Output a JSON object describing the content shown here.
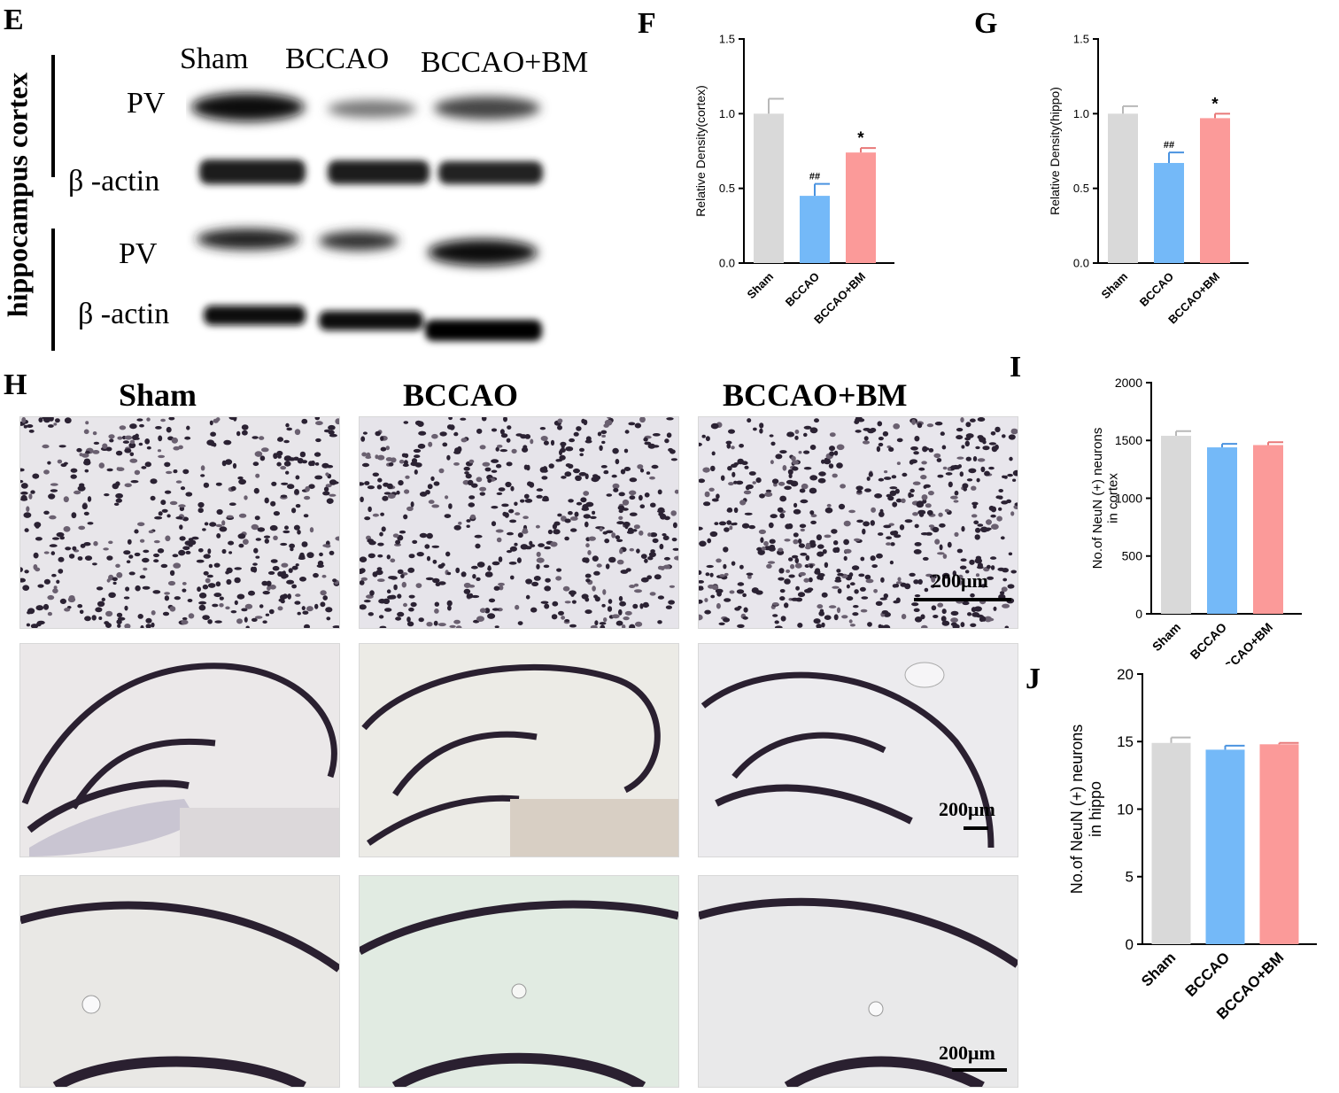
{
  "panels": {
    "E": "E",
    "F": "F",
    "G": "G",
    "H": "H",
    "I": "I",
    "J": "J"
  },
  "western_blot": {
    "lanes": [
      "Sham",
      "BCCAO",
      "BCCAO+BM"
    ],
    "region_labels": [
      "cortex",
      "hippocampus"
    ],
    "rows": [
      "PV",
      "β -actin",
      "PV",
      "β -actin"
    ]
  },
  "histology": {
    "columns": [
      "Sham",
      "BCCAO",
      "BCCAO+BM"
    ],
    "scale_bars": [
      "200μm",
      "200μm",
      "200μm"
    ]
  },
  "colors": {
    "sham": "#d9d9d9",
    "bccao": "#74b9f8",
    "bccao_bm": "#fb9a99"
  },
  "chart_data": [
    {
      "panel": "F",
      "type": "bar",
      "categories": [
        "Sham",
        "BCCAO",
        "BCCAO+BM"
      ],
      "values": [
        1.0,
        0.45,
        0.74
      ],
      "errors": [
        0.1,
        0.08,
        0.03
      ],
      "annotations": [
        "",
        "##",
        "*"
      ],
      "ylabel": "Relative Density(cortex)",
      "ylim": [
        0,
        1.5
      ],
      "yticks": [
        "0.0",
        "0.5",
        "1.0",
        "1.5"
      ]
    },
    {
      "panel": "G",
      "type": "bar",
      "categories": [
        "Sham",
        "BCCAO",
        "BCCAO+BM"
      ],
      "values": [
        1.0,
        0.67,
        0.97
      ],
      "errors": [
        0.05,
        0.07,
        0.03
      ],
      "annotations": [
        "",
        "##",
        "*"
      ],
      "ylabel": "Relative Density(hippo)",
      "ylim": [
        0,
        1.5
      ],
      "yticks": [
        "0.0",
        "0.5",
        "1.0",
        "1.5"
      ]
    },
    {
      "panel": "I",
      "type": "bar",
      "categories": [
        "Sham",
        "BCCAO",
        "BCCAO+BM"
      ],
      "values": [
        1540,
        1440,
        1460
      ],
      "errors": [
        40,
        30,
        25
      ],
      "annotations": [
        "",
        "",
        ""
      ],
      "ylabel": "No.of NeuN (+) neurons in cortex",
      "ylim": [
        0,
        2000
      ],
      "yticks": [
        "0",
        "500",
        "1000",
        "1500",
        "2000"
      ]
    },
    {
      "panel": "J",
      "type": "bar",
      "categories": [
        "Sham",
        "BCCAO",
        "BCCAO+BM"
      ],
      "values": [
        14.9,
        14.4,
        14.8
      ],
      "errors": [
        0.4,
        0.3,
        0.1
      ],
      "annotations": [
        "",
        "",
        ""
      ],
      "ylabel": "No.of NeuN (+) neurons in hippo",
      "ylim": [
        0,
        20
      ],
      "yticks": [
        "0",
        "5",
        "10",
        "15",
        "20"
      ]
    }
  ]
}
